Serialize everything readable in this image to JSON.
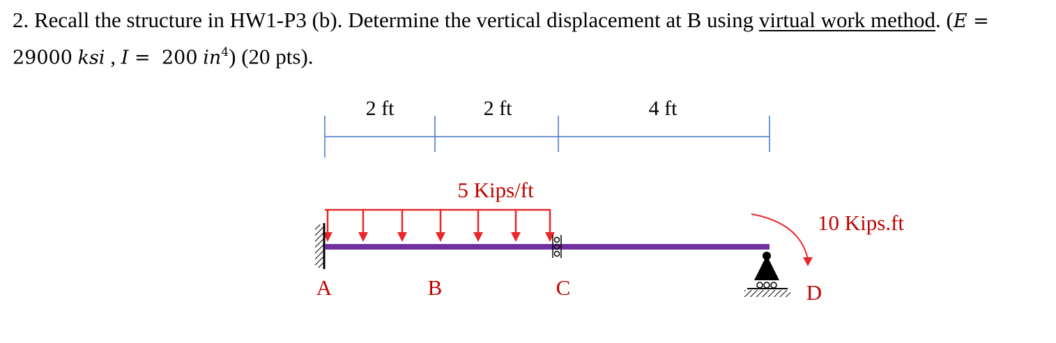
{
  "question": {
    "number": "2.",
    "text_part1": "Recall the structure in HW1-P3 (b). Determine the vertical displacement at B using",
    "underlined_part": "virtual work method",
    "period": ".",
    "E_symbol": "E",
    "E_equals": " = ",
    "E_value": "29000",
    "E_unit": "ksi",
    "I_symbol": "I",
    "I_equals": " = ",
    "I_value": "200",
    "I_unit": "in",
    "I_exp": "4",
    "points": "(20 pts)."
  },
  "diagram": {
    "dimensions": [
      {
        "label": "2 ft"
      },
      {
        "label": "2 ft"
      },
      {
        "label": "4 ft"
      }
    ],
    "distributed_load_label": "5 Kips/ft",
    "moment_label": "10 Kips.ft",
    "points": {
      "A": "A",
      "B": "B",
      "C": "C",
      "D": "D"
    },
    "colors": {
      "beam": "#7030a0",
      "load": "#e8262b",
      "dimension": "#4472c4",
      "label_red": "#c00000",
      "support": "#000000"
    }
  }
}
